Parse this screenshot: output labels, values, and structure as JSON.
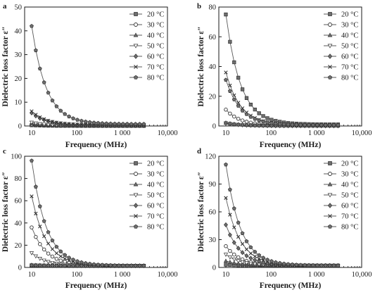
{
  "chart_data": [
    {
      "type": "line",
      "panel_label": "a",
      "xlabel": "Frequency (MHz)",
      "ylabel": "Dielectric loss factor ε″",
      "xscale": "log",
      "xlim": [
        7,
        10000
      ],
      "ylim": [
        0,
        50
      ],
      "xticks": [
        10,
        100,
        1000,
        10000
      ],
      "xtick_labels": [
        "10",
        "100",
        "1 000",
        "10,000"
      ],
      "yticks": [
        0,
        10,
        20,
        30,
        40,
        50
      ],
      "ytick_labels": [
        "0",
        "10",
        "20",
        "30",
        "40",
        "50"
      ],
      "legend_position": "top-right",
      "series": [
        {
          "name": "20 °C",
          "marker": "square",
          "start": 0.3,
          "end": 0.05
        },
        {
          "name": "30 °C",
          "marker": "circle",
          "start": 0.6,
          "end": 0.05
        },
        {
          "name": "40 °C",
          "marker": "triangle",
          "start": 0.9,
          "end": 0.05
        },
        {
          "name": "50 °C",
          "marker": "triangle-down",
          "start": 1.5,
          "end": 0.1
        },
        {
          "name": "60 °C",
          "marker": "diamond",
          "start": 5.5,
          "end": 0.3
        },
        {
          "name": "70 °C",
          "marker": "x",
          "start": 6.2,
          "end": 0.4
        },
        {
          "name": "80 °C",
          "marker": "pentagon",
          "start": 42,
          "end": 0.8
        }
      ]
    },
    {
      "type": "line",
      "panel_label": "b",
      "xlabel": "Frequency (MHz)",
      "ylabel": "Dielectric loss factor ε″",
      "xscale": "log",
      "xlim": [
        7,
        10000
      ],
      "ylim": [
        0,
        80
      ],
      "xticks": [
        10,
        100,
        1000,
        10000
      ],
      "xtick_labels": [
        "10",
        "100",
        "1 000",
        "10,000"
      ],
      "yticks": [
        0,
        20,
        40,
        60,
        80
      ],
      "ytick_labels": [
        "0",
        "20",
        "40",
        "60",
        "80"
      ],
      "legend_position": "top-right",
      "series": [
        {
          "name": "20 °C",
          "marker": "square",
          "start": 75,
          "end": 1.0
        },
        {
          "name": "30 °C",
          "marker": "circle",
          "start": 11,
          "end": 0.3
        },
        {
          "name": "40 °C",
          "marker": "triangle",
          "start": 2,
          "end": 0.1
        },
        {
          "name": "50 °C",
          "marker": "triangle-down",
          "start": 2,
          "end": 0.1
        },
        {
          "name": "60 °C",
          "marker": "diamond",
          "start": 2,
          "end": 0.1
        },
        {
          "name": "70 °C",
          "marker": "x",
          "start": 36,
          "end": 0.6
        },
        {
          "name": "80 °C",
          "marker": "pentagon",
          "start": 31,
          "end": 0.6
        }
      ]
    },
    {
      "type": "line",
      "panel_label": "c",
      "xlabel": "Frequency (MHz)",
      "ylabel": "Dielectric loss factor ε″",
      "xscale": "log",
      "xlim": [
        7,
        10000
      ],
      "ylim": [
        0,
        100
      ],
      "xticks": [
        10,
        100,
        1000,
        10000
      ],
      "xtick_labels": [
        "10",
        "100",
        "1 000",
        "10,000"
      ],
      "yticks": [
        0,
        20,
        40,
        60,
        80,
        100
      ],
      "ytick_labels": [
        "0",
        "20",
        "40",
        "60",
        "80",
        "100"
      ],
      "legend_position": "top-right",
      "series": [
        {
          "name": "20 °C",
          "marker": "square",
          "start": 2,
          "end": 1.5
        },
        {
          "name": "30 °C",
          "marker": "circle",
          "start": 36,
          "end": 1.5
        },
        {
          "name": "40 °C",
          "marker": "triangle",
          "start": 2,
          "end": 1.5
        },
        {
          "name": "50 °C",
          "marker": "triangle-down",
          "start": 13,
          "end": 1.5
        },
        {
          "name": "60 °C",
          "marker": "diamond",
          "start": 2,
          "end": 1.5
        },
        {
          "name": "70 °C",
          "marker": "x",
          "start": 64,
          "end": 1.5
        },
        {
          "name": "80 °C",
          "marker": "pentagon",
          "start": 96,
          "end": 1.5
        }
      ]
    },
    {
      "type": "line",
      "panel_label": "d",
      "xlabel": "Frequency (MHz)",
      "ylabel": "Dielectric loss factor ε″",
      "xscale": "log",
      "xlim": [
        7,
        10000
      ],
      "ylim": [
        0,
        120
      ],
      "xticks": [
        10,
        100,
        1000,
        10000
      ],
      "xtick_labels": [
        "10",
        "100",
        "1 000",
        "10,000"
      ],
      "yticks": [
        0,
        30,
        60,
        90,
        120
      ],
      "ytick_labels": [
        "0",
        "30",
        "60",
        "90",
        "120"
      ],
      "legend_position": "top-right",
      "series": [
        {
          "name": "20 °C",
          "marker": "square",
          "start": 3,
          "end": 2
        },
        {
          "name": "30 °C",
          "marker": "circle",
          "start": 23,
          "end": 2
        },
        {
          "name": "40 °C",
          "marker": "triangle",
          "start": 7,
          "end": 2
        },
        {
          "name": "50 °C",
          "marker": "triangle-down",
          "start": 14,
          "end": 2
        },
        {
          "name": "60 °C",
          "marker": "diamond",
          "start": 46,
          "end": 2
        },
        {
          "name": "70 °C",
          "marker": "x",
          "start": 75,
          "end": 2
        },
        {
          "name": "80 °C",
          "marker": "pentagon",
          "start": 111,
          "end": 2
        }
      ]
    }
  ],
  "colors": {
    "axis": "#1a1a1a",
    "series_line": "#5a5a5a",
    "marker_fill": "#6e6e6e"
  }
}
